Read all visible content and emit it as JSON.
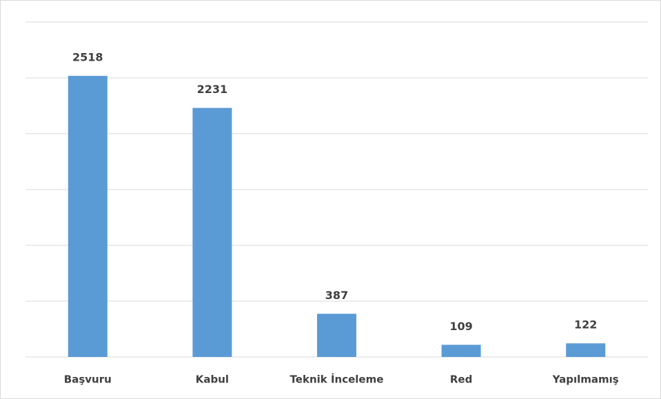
{
  "chart_data": {
    "type": "bar",
    "categories": [
      "Başvuru",
      "Kabul",
      "Teknik İnceleme",
      "Red",
      "Yapılmamış"
    ],
    "values": [
      2518,
      2231,
      387,
      109,
      122
    ],
    "color": "#5b9bd5",
    "ylim": [
      0,
      3000
    ],
    "yticks": [
      0,
      500,
      1000,
      1500,
      2000,
      2500,
      3000
    ],
    "grid": true
  }
}
